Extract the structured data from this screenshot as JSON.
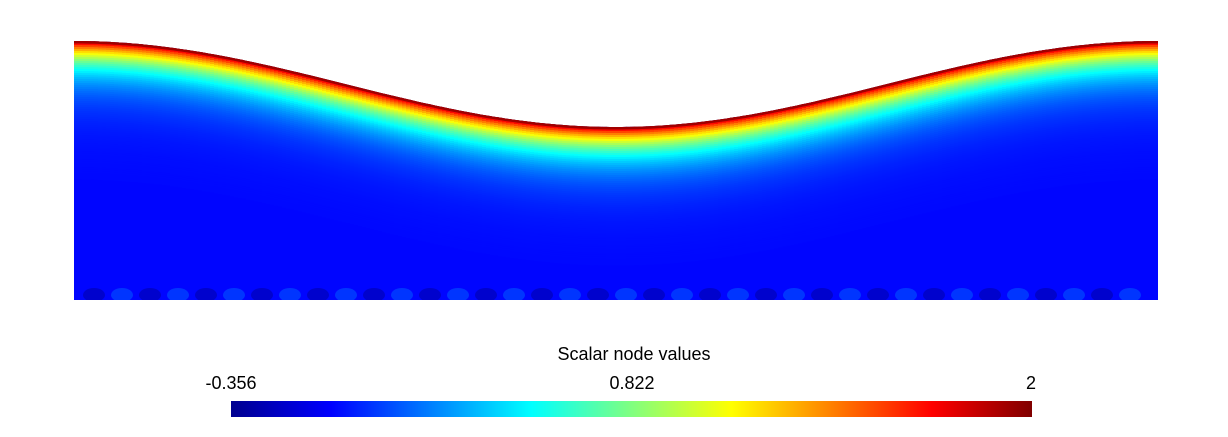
{
  "chart_data": {
    "type": "heatmap",
    "title": "",
    "field": {
      "domain_shape": "cosine-bump top boundary, flat bottom",
      "max_value_location": "top boundary",
      "min_value_location": "bottom boundary",
      "top_boundary_value": 2,
      "interior_value": -0.05
    },
    "colorbar": {
      "title": "Scalar node values",
      "min": -0.356,
      "mid": 0.822,
      "max": 2,
      "tick_labels": [
        "-0.356",
        "0.822",
        "2"
      ],
      "colormap": "jet",
      "orientation": "horizontal",
      "placement": "bottom"
    },
    "colors": {
      "jet": [
        "#00008f",
        "#0000ff",
        "#0080ff",
        "#00ffff",
        "#80ff80",
        "#ffff00",
        "#ff8000",
        "#ff0000",
        "#800000"
      ]
    }
  }
}
